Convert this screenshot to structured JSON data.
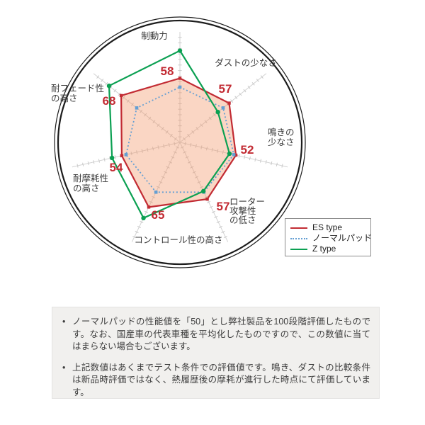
{
  "chart_data": {
    "type": "radar",
    "axes": [
      {
        "name": "制動力",
        "lines": [
          "制動力"
        ]
      },
      {
        "name": "ダストの少なさ",
        "lines": [
          "ダストの少なさ"
        ]
      },
      {
        "name": "鳴きの少なさ",
        "lines": [
          "鳴きの",
          "少なさ"
        ]
      },
      {
        "name": "ローター攻撃性の低さ",
        "lines": [
          "ローター",
          "攻撃性",
          "の低さ"
        ]
      },
      {
        "name": "コントロール性の高さ",
        "lines": [
          "コントロール性の高さ"
        ]
      },
      {
        "name": "耐摩耗性の高さ",
        "lines": [
          "耐摩耗性",
          "の高さ"
        ]
      },
      {
        "name": "耐フェード性の高さ",
        "lines": [
          "耐フェード性",
          "の高さ"
        ]
      }
    ],
    "scale": {
      "min": 0,
      "max": 100,
      "normal_pad_baseline": 50
    },
    "series": [
      {
        "name": "ES type",
        "color": "#c22b33",
        "fill": "rgba(242,153,108,0.40)",
        "line_style": "solid",
        "marker": "square",
        "values": [
          58,
          57,
          52,
          57,
          65,
          54,
          68
        ],
        "values_labeled": true
      },
      {
        "name": "ノーマルパッド",
        "color": "#649fd3",
        "line_style": "dotted",
        "marker": "square",
        "values": [
          50,
          50,
          50,
          50,
          50,
          50,
          50
        ],
        "values_labeled": false
      },
      {
        "name": "Z type",
        "color": "#0ba052",
        "line_style": "solid",
        "marker": "circle",
        "values": [
          83,
          44,
          46,
          49,
          76,
          63,
          82
        ],
        "values_labeled": false,
        "values_estimated": true
      }
    ],
    "legend_position": "bottom-right",
    "grid": "radial-ticks",
    "outer_ring": "double-circle"
  },
  "notes": {
    "bullet": "•",
    "items": [
      "ノーマルパッドの性能値を「50」とし弊社製品を100段階評価したものです。なお、国産車の代表車種を平均化したものですので、この数値に当てはまらない場合もございます。",
      "上記数値はあくまでテスト条件での評価値です。鳴き、ダストの比較条件は新品時評価ではなく、熱履歴後の摩耗が進行した時点にて評価しています。"
    ]
  }
}
